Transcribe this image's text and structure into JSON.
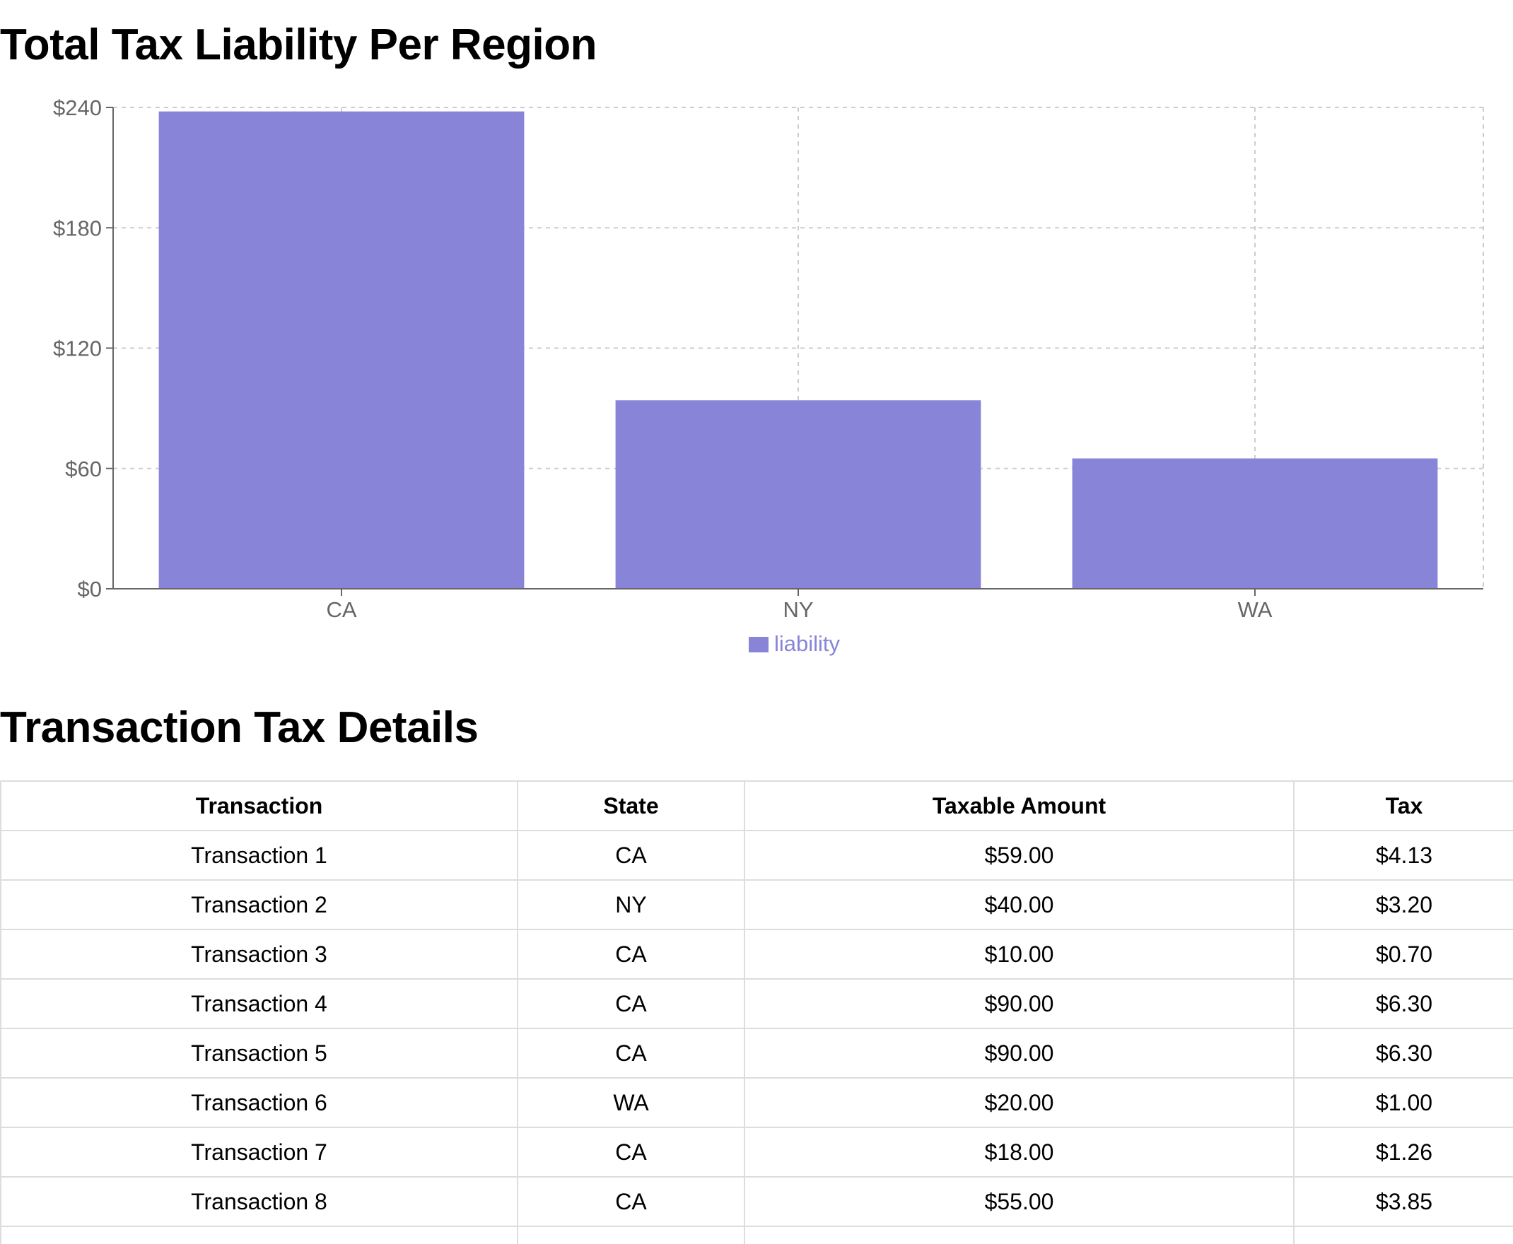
{
  "chart_section": {
    "title": "Total Tax Liability Per Region"
  },
  "chart_data": {
    "type": "bar",
    "title": "Total Tax Liability Per Region",
    "categories": [
      "CA",
      "NY",
      "WA"
    ],
    "series": [
      {
        "name": "liability",
        "values": [
          238,
          94,
          65
        ],
        "color": "#8884d8"
      }
    ],
    "xlabel": "",
    "ylabel": "",
    "ylim": [
      0,
      240
    ],
    "yticks": [
      0,
      60,
      120,
      180,
      240
    ],
    "ytick_labels": [
      "$0",
      "$60",
      "$120",
      "$180",
      "$240"
    ],
    "grid": true,
    "grid_style": "dashed",
    "legend_position": "bottom-center"
  },
  "table_section": {
    "title": "Transaction Tax Details",
    "columns": [
      "Transaction",
      "State",
      "Taxable Amount",
      "Tax"
    ],
    "rows": [
      [
        "Transaction 1",
        "CA",
        "$59.00",
        "$4.13"
      ],
      [
        "Transaction 2",
        "NY",
        "$40.00",
        "$3.20"
      ],
      [
        "Transaction 3",
        "CA",
        "$10.00",
        "$0.70"
      ],
      [
        "Transaction 4",
        "CA",
        "$90.00",
        "$6.30"
      ],
      [
        "Transaction 5",
        "CA",
        "$90.00",
        "$6.30"
      ],
      [
        "Transaction 6",
        "WA",
        "$20.00",
        "$1.00"
      ],
      [
        "Transaction 7",
        "CA",
        "$18.00",
        "$1.26"
      ],
      [
        "Transaction 8",
        "CA",
        "$55.00",
        "$3.85"
      ],
      [
        "",
        "",
        "",
        ""
      ]
    ]
  },
  "colors": {
    "bar": "#8884d8",
    "grid": "#cccccc",
    "axis": "#666666",
    "table_border": "#dddddd"
  }
}
